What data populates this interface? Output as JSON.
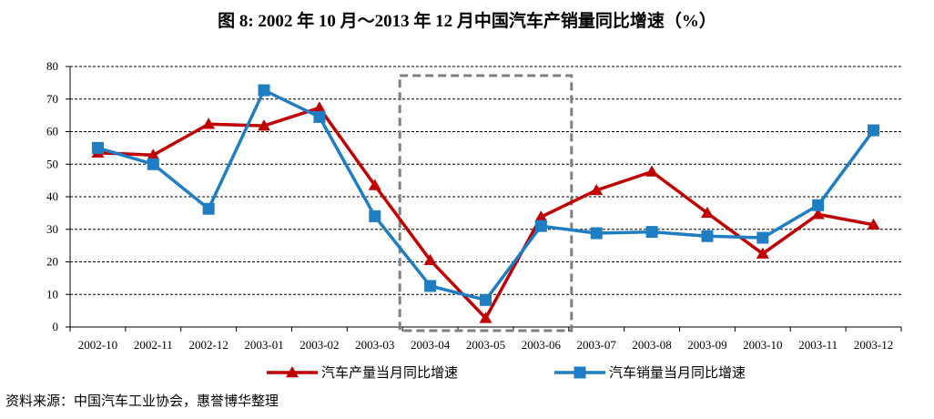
{
  "source": "资料来源：中国汽车工业协会，惠誉博华整理",
  "chart_data": {
    "type": "line",
    "title": "图 8: 2002 年 10 月～2013 年 12 月中国汽车产销量同比增速（%）",
    "categories": [
      "2002-10",
      "2002-11",
      "2002-12",
      "2003-01",
      "2003-02",
      "2003-03",
      "2003-04",
      "2003-05",
      "2003-06",
      "2003-07",
      "2003-08",
      "2003-09",
      "2003-10",
      "2003-11",
      "2003-12"
    ],
    "yticks": [
      "0",
      "10",
      "20",
      "30",
      "40",
      "50",
      "60",
      "70",
      "80"
    ],
    "ylim": [
      0,
      80
    ],
    "grid": true,
    "legend_position": "bottom",
    "highlight_box": {
      "from": "2003-04",
      "to": "2003-06"
    },
    "series": [
      {
        "name": "汽车产量当月同比增速",
        "color": "#C00000",
        "marker": "triangle",
        "values": [
          53.5,
          52.8,
          62.3,
          61.8,
          67.3,
          43.5,
          20.5,
          2.7,
          33.8,
          42.0,
          47.7,
          35.0,
          22.5,
          34.6,
          31.4
        ]
      },
      {
        "name": "汽车销量当月同比增速",
        "color": "#1F7DC3",
        "marker": "square",
        "values": [
          55.0,
          50.0,
          36.3,
          72.7,
          64.5,
          34.0,
          12.6,
          8.3,
          31.0,
          28.8,
          29.2,
          27.9,
          27.4,
          37.4,
          60.4
        ]
      }
    ]
  }
}
